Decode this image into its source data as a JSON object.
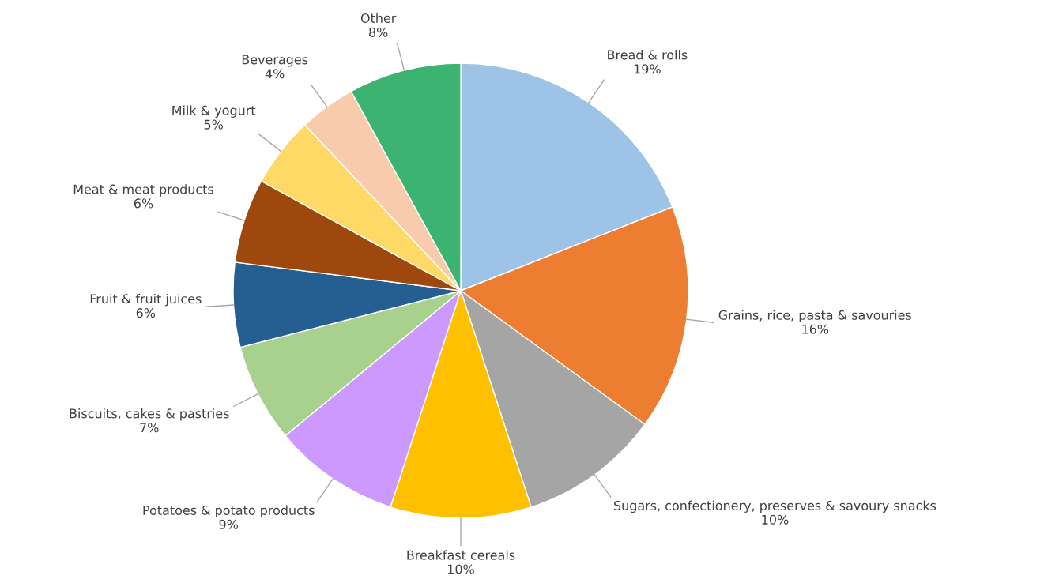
{
  "chart_data": {
    "type": "pie",
    "categories": [
      "Bread & rolls",
      "Grains, rice, pasta & savouries",
      "Sugars, confectionery, preserves & savoury snacks",
      "Breakfast cereals",
      "Potatoes & potato products",
      "Biscuits, cakes & pastries",
      "Fruit & fruit juices",
      "Meat & meat products",
      "Milk & yogurt",
      "Beverages",
      "Other"
    ],
    "values": [
      19,
      16,
      10,
      10,
      9,
      7,
      6,
      6,
      5,
      4,
      8
    ],
    "value_labels": [
      "19%",
      "16%",
      "10%",
      "10%",
      "9%",
      "7%",
      "6%",
      "6%",
      "5%",
      "4%",
      "8%"
    ],
    "colors": [
      "#9dc3e6",
      "#ed7d31",
      "#a5a5a5",
      "#ffc000",
      "#cc99ff",
      "#a9d18e",
      "#255e91",
      "#9e480e",
      "#ffd966",
      "#f8cbad",
      "#3cb371"
    ],
    "legend": false
  }
}
